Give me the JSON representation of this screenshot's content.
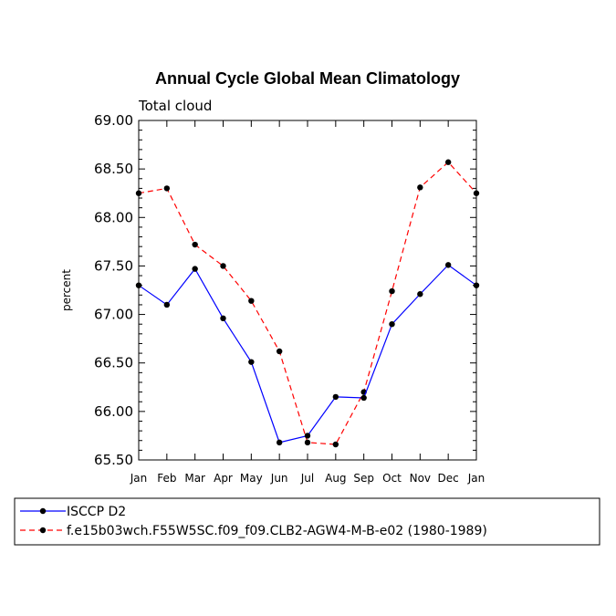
{
  "chart_data": {
    "type": "line",
    "title": "Annual Cycle Global Mean Climatology",
    "subtitle": "Total cloud",
    "xlabel": "",
    "ylabel": "percent",
    "categories": [
      "Jan",
      "Feb",
      "Mar",
      "Apr",
      "May",
      "Jun",
      "Jul",
      "Aug",
      "Sep",
      "Oct",
      "Nov",
      "Dec",
      "Jan"
    ],
    "ylim": [
      65.5,
      69.0
    ],
    "yticks": [
      "65.50",
      "66.00",
      "66.50",
      "67.00",
      "67.50",
      "68.00",
      "68.50",
      "69.00"
    ],
    "series": [
      {
        "name": "ISCCP D2",
        "color": "#0000ff",
        "style": "solid",
        "values": [
          67.3,
          67.1,
          67.47,
          66.96,
          66.51,
          65.68,
          65.75,
          66.15,
          66.14,
          66.9,
          67.21,
          67.51,
          67.3
        ]
      },
      {
        "name": "f.e15b03wch.F55W5SC.f09_f09.CLB2-AGW4-M-B-e02 (1980-1989)",
        "color": "#ff0000",
        "style": "dashed",
        "values": [
          68.25,
          68.3,
          67.72,
          67.5,
          67.14,
          66.62,
          65.68,
          65.66,
          66.2,
          67.24,
          68.31,
          68.57,
          68.25
        ]
      }
    ]
  }
}
